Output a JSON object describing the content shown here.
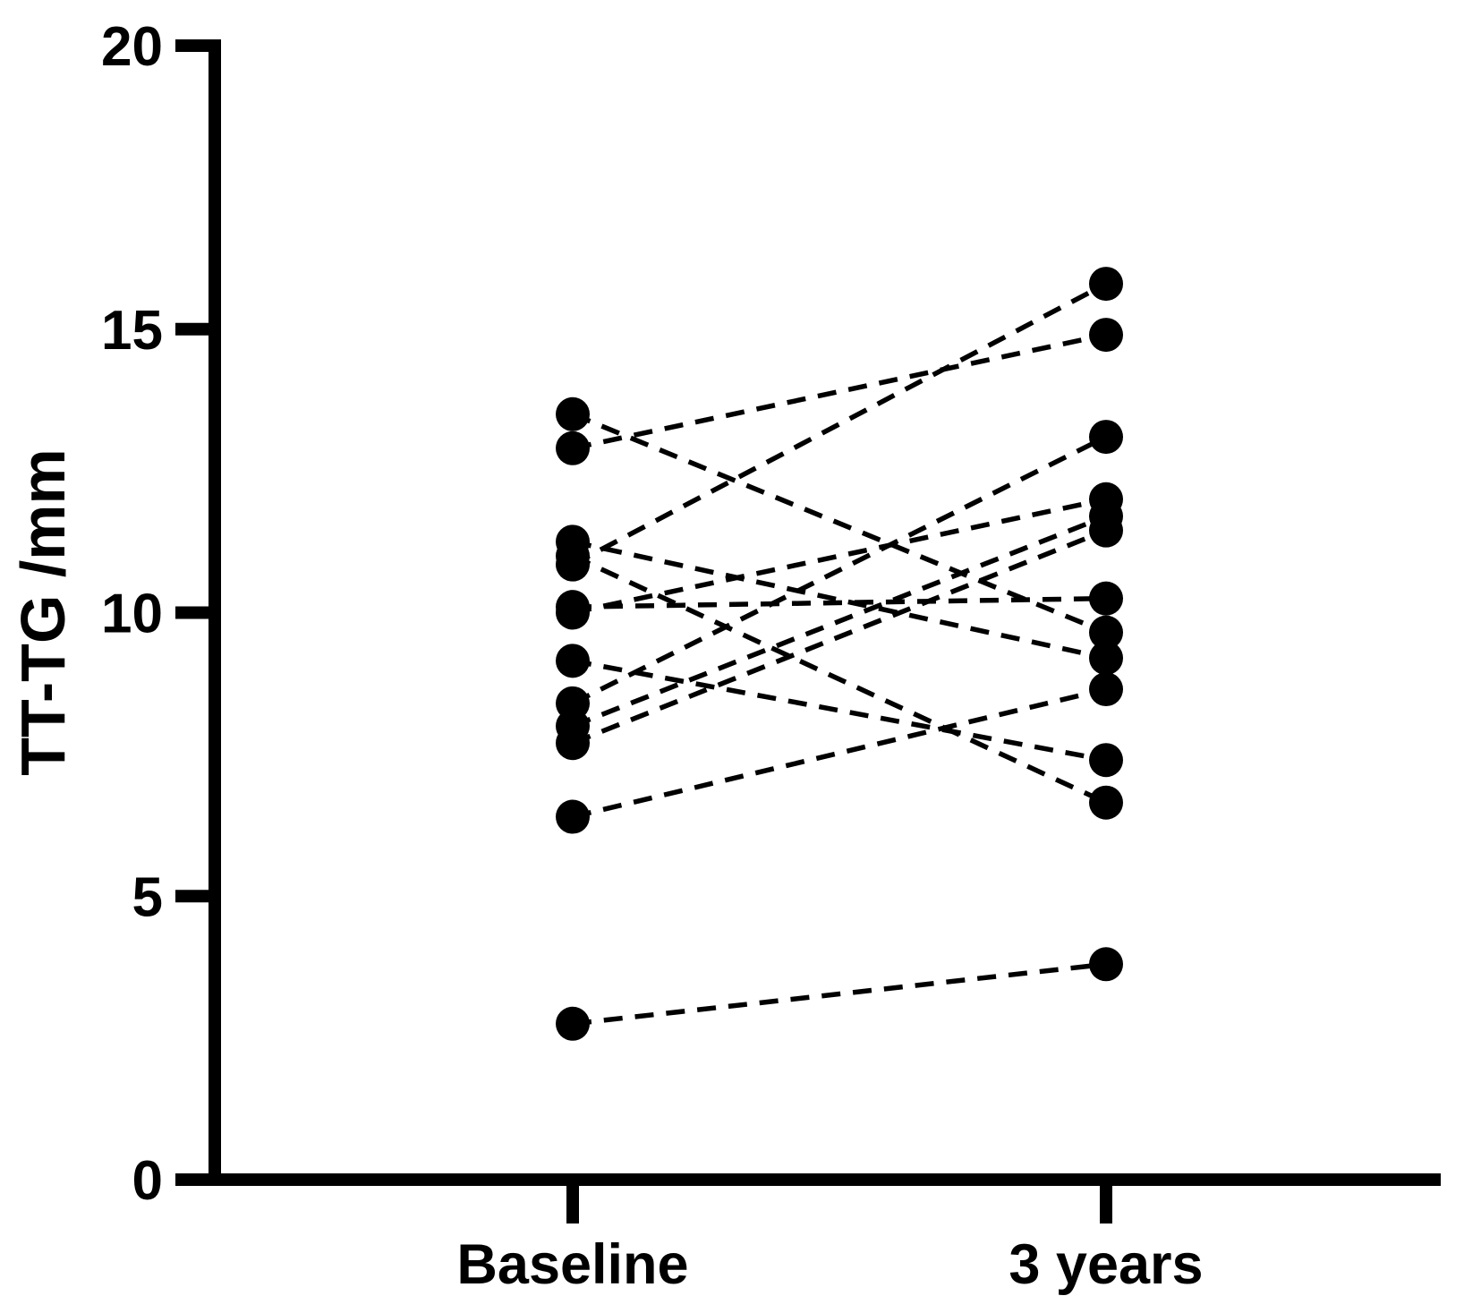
{
  "figure": {
    "background": "#ffffff",
    "ink_color": "#000000"
  },
  "chart_data": {
    "type": "line",
    "subtype": "paired-slope-chart",
    "title": "",
    "xlabel": "",
    "ylabel": "TT-TG /mm",
    "categories": [
      "Baseline",
      "3 years"
    ],
    "yticks": [
      0,
      5,
      10,
      15,
      20
    ],
    "ylim": [
      0,
      20
    ],
    "grid": false,
    "legend": "none",
    "marker": "filled-circle",
    "marker_color": "#000000",
    "line_style": "dashed",
    "line_color": "#000000",
    "series": [
      {
        "name": "pair-01",
        "values": [
          13.5,
          9.65
        ]
      },
      {
        "name": "pair-02",
        "values": [
          12.9,
          14.9
        ]
      },
      {
        "name": "pair-03",
        "values": [
          11.25,
          9.2
        ]
      },
      {
        "name": "pair-04",
        "values": [
          11.0,
          6.65
        ]
      },
      {
        "name": "pair-05",
        "values": [
          10.85,
          15.8
        ]
      },
      {
        "name": "pair-06",
        "values": [
          10.1,
          10.25
        ]
      },
      {
        "name": "pair-07",
        "values": [
          10.0,
          12.0
        ]
      },
      {
        "name": "pair-08",
        "values": [
          9.15,
          7.4
        ]
      },
      {
        "name": "pair-09",
        "values": [
          8.4,
          13.1
        ]
      },
      {
        "name": "pair-10",
        "values": [
          8.0,
          11.7
        ]
      },
      {
        "name": "pair-11",
        "values": [
          7.7,
          11.45
        ]
      },
      {
        "name": "pair-12",
        "values": [
          6.4,
          8.65
        ]
      },
      {
        "name": "pair-13",
        "values": [
          2.75,
          3.8
        ]
      }
    ]
  }
}
